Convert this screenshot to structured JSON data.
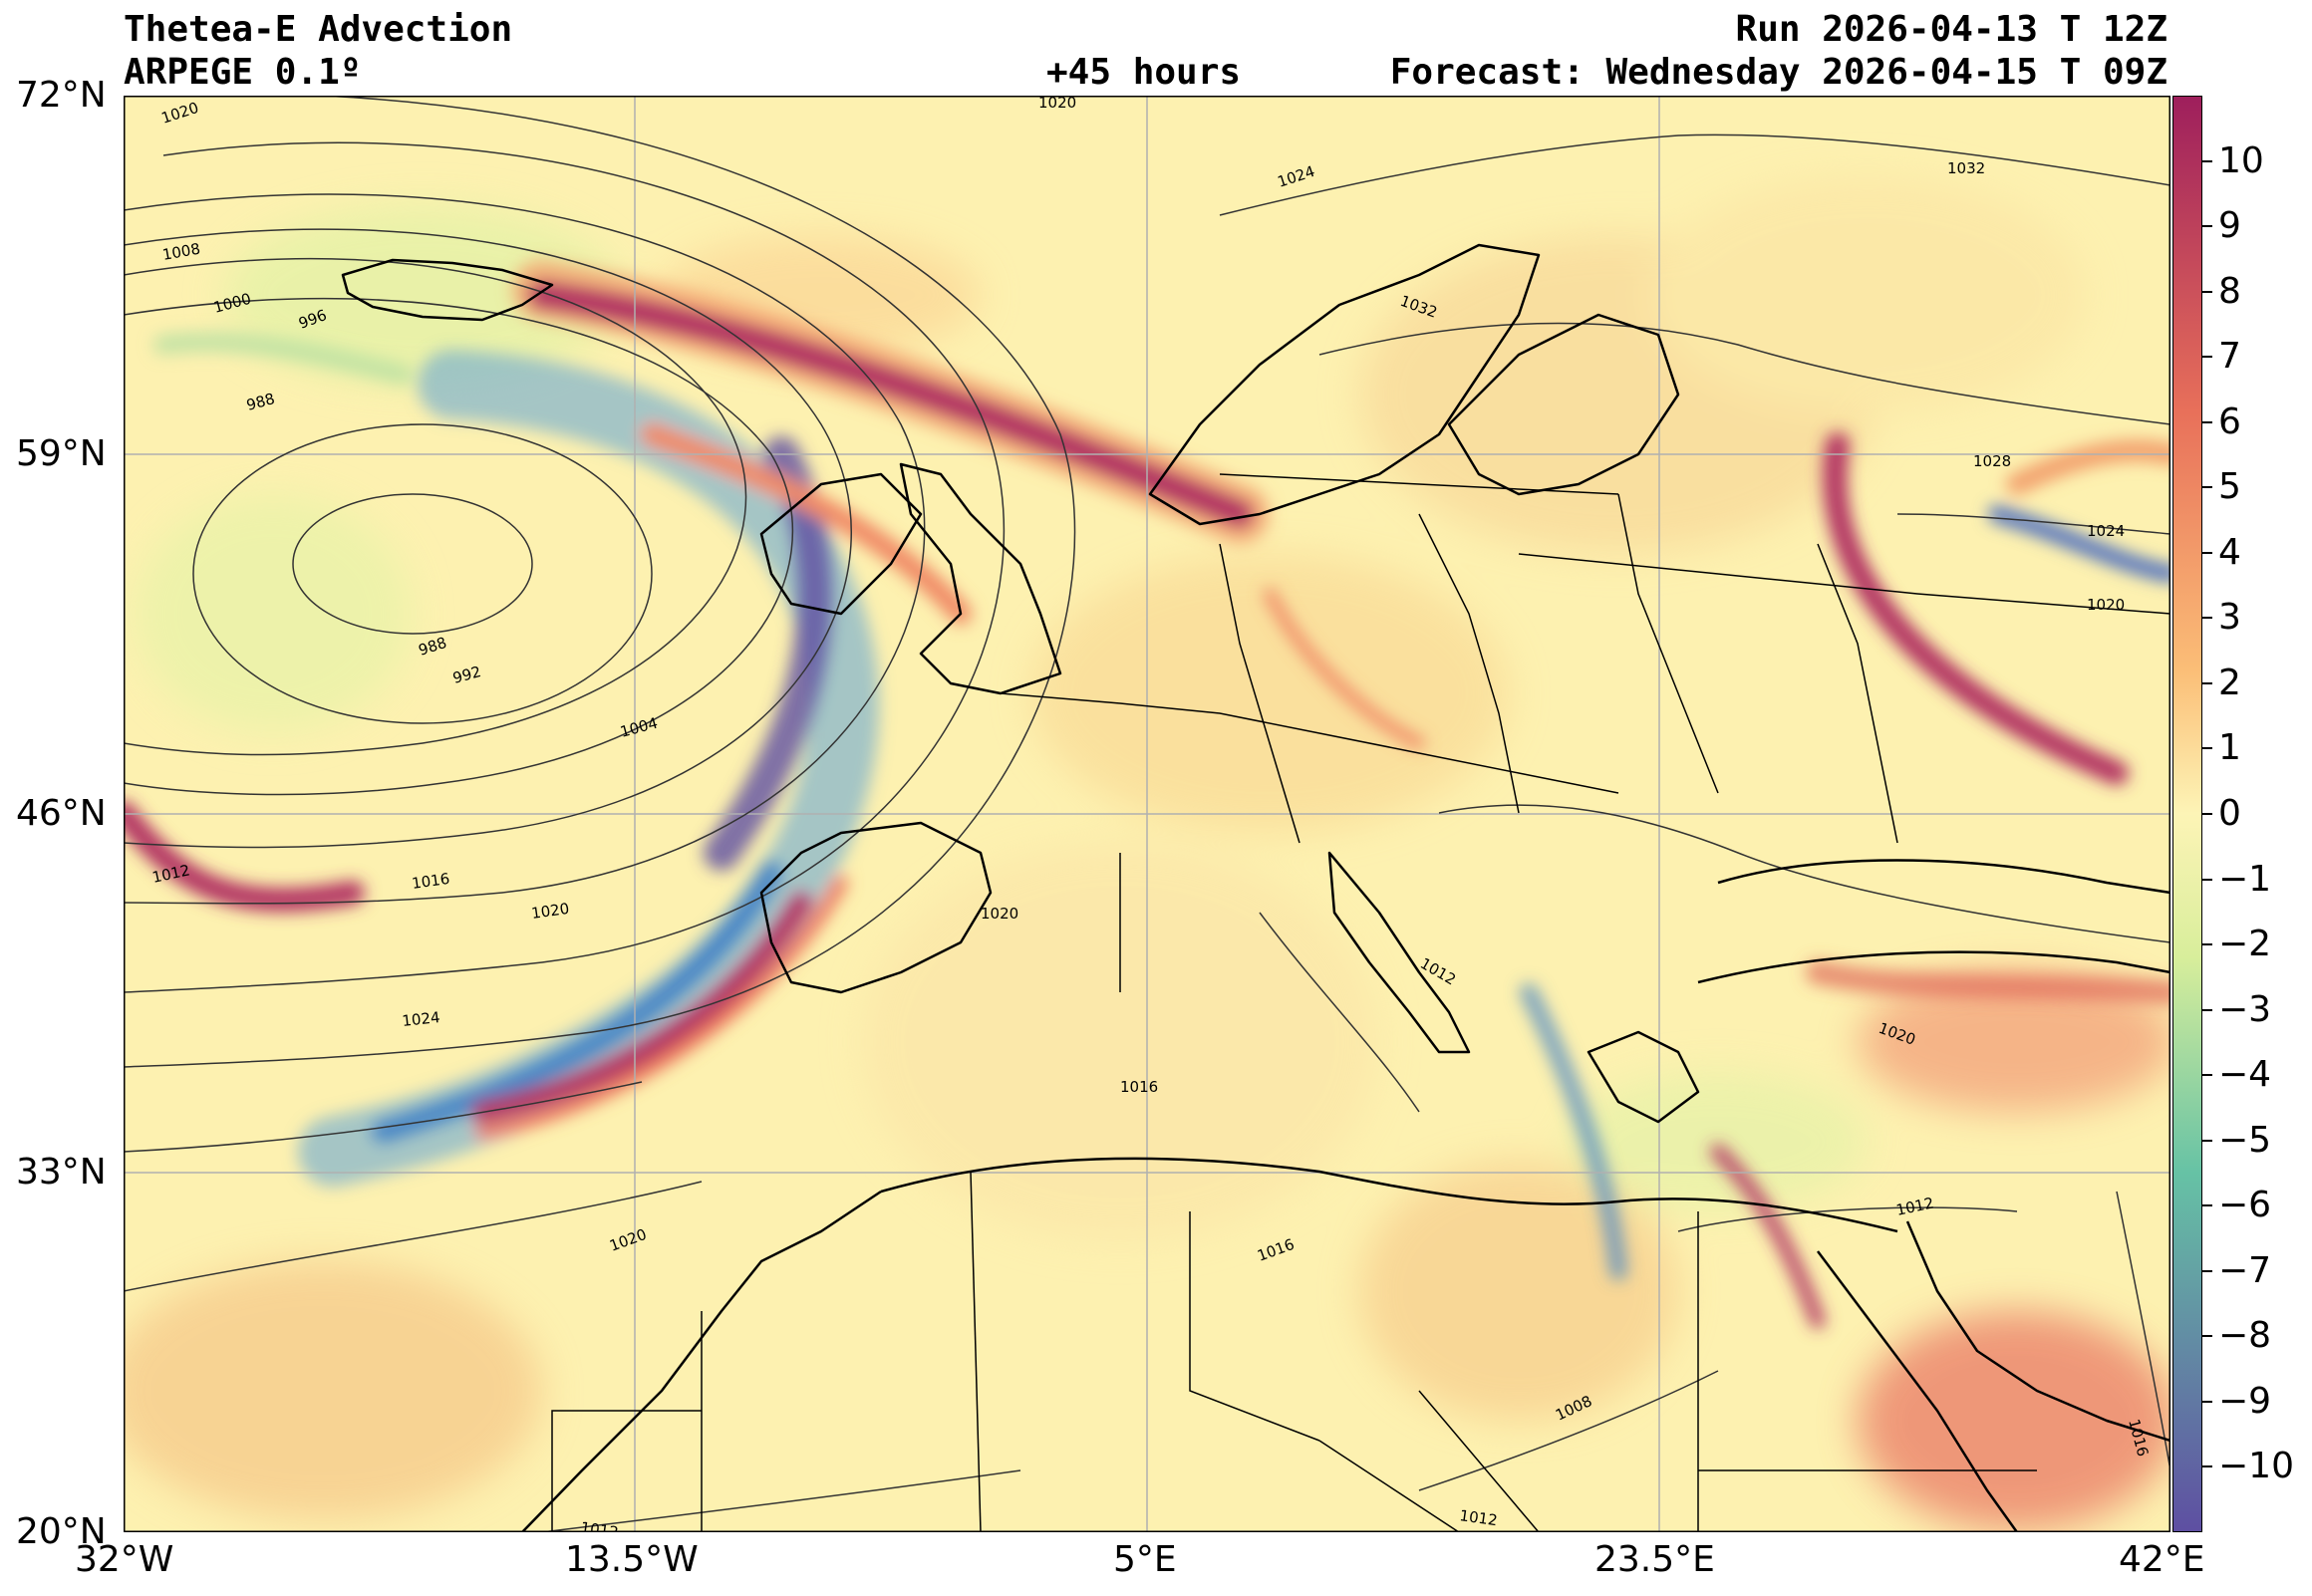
{
  "header": {
    "title": "Thetea-E Advection",
    "model": "ARPEGE 0.1º",
    "lead": "+45 hours",
    "run": "Run 2026-04-13 T 12Z",
    "forecast": "Forecast: Wednesday 2026-04-15 T 09Z"
  },
  "axes": {
    "lat_labels": [
      "72°N",
      "59°N",
      "46°N",
      "33°N",
      "20°N"
    ],
    "lon_labels": [
      "32°W",
      "13.5°W",
      "5°E",
      "23.5°E",
      "42°E"
    ],
    "lat_values": [
      72,
      59,
      46,
      33,
      20
    ],
    "lon_values": [
      -32,
      -13.5,
      5,
      23.5,
      42
    ]
  },
  "colorbar": {
    "min": -11,
    "max": 11,
    "tick_labels": [
      "10",
      "9",
      "8",
      "7",
      "6",
      "5",
      "4",
      "3",
      "2",
      "1",
      "0",
      "−1",
      "−2",
      "−3",
      "−4",
      "−5",
      "−6",
      "−7",
      "−8",
      "−9",
      "−10"
    ],
    "tick_values": [
      10,
      9,
      8,
      7,
      6,
      5,
      4,
      3,
      2,
      1,
      0,
      -1,
      -2,
      -3,
      -4,
      -5,
      -6,
      -7,
      -8,
      -9,
      -10
    ],
    "colors": {
      "pos_high": "#9e1f5c",
      "pos_mid": "#e8705a",
      "pos_low": "#fbbe77",
      "neutral": "#fdf4b6",
      "neg_low": "#d8ee9b",
      "neg_mid": "#66c2a5",
      "neg_high": "#5e4fa2"
    }
  },
  "isobar_labels": [
    "1020",
    "1020",
    "1024",
    "1032",
    "1008",
    "1000",
    "996",
    "988",
    "988",
    "992",
    "1004",
    "1012",
    "1016",
    "1020",
    "1024",
    "1020",
    "1032",
    "1028",
    "1024",
    "1020",
    "1012",
    "1016",
    "1020",
    "1020",
    "1012",
    "1016",
    "1012",
    "1008",
    "1012",
    "1016"
  ]
}
